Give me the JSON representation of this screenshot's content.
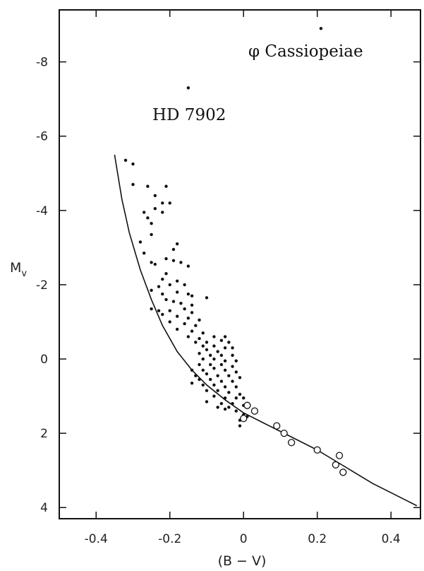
{
  "chart_data": {
    "type": "scatter",
    "title": "",
    "xlabel": "(B − V)",
    "ylabel": "M",
    "ylabel_subscript": "v",
    "xlim": [
      -0.5,
      0.48
    ],
    "ylim": [
      4.3,
      -9.4
    ],
    "y_inverted": true,
    "x_ticks": [
      -0.4,
      -0.2,
      0,
      0.2,
      0.4
    ],
    "x_tick_labels": [
      "-0.4",
      "-0.2",
      "0",
      "0.2",
      "0.4"
    ],
    "y_ticks": [
      -8,
      -6,
      -4,
      -2,
      0,
      2,
      4
    ],
    "y_tick_labels": [
      "-8",
      "-6",
      "-4",
      "-2",
      "0",
      "2",
      "4"
    ],
    "grid": false,
    "annotations": [
      {
        "text": "φ Cassiopeiae",
        "x": 0.21,
        "y": -8.9
      },
      {
        "text": "HD 7902",
        "x": -0.15,
        "y": -7.3
      }
    ],
    "series": [
      {
        "marker": "filled-dot",
        "points": [
          [
            0.21,
            -8.9
          ],
          [
            -0.15,
            -7.3
          ],
          [
            -0.32,
            -5.35
          ],
          [
            -0.3,
            -5.25
          ],
          [
            -0.3,
            -4.7
          ],
          [
            -0.26,
            -4.65
          ],
          [
            -0.21,
            -4.65
          ],
          [
            -0.24,
            -4.4
          ],
          [
            -0.22,
            -4.2
          ],
          [
            -0.2,
            -4.2
          ],
          [
            -0.24,
            -4.05
          ],
          [
            -0.27,
            -3.95
          ],
          [
            -0.22,
            -3.95
          ],
          [
            -0.26,
            -3.8
          ],
          [
            -0.25,
            -3.65
          ],
          [
            -0.28,
            -3.15
          ],
          [
            -0.25,
            -3.35
          ],
          [
            -0.18,
            -3.1
          ],
          [
            -0.19,
            -2.95
          ],
          [
            -0.27,
            -2.85
          ],
          [
            -0.21,
            -2.7
          ],
          [
            -0.25,
            -2.6
          ],
          [
            -0.24,
            -2.55
          ],
          [
            -0.19,
            -2.65
          ],
          [
            -0.17,
            -2.6
          ],
          [
            -0.15,
            -2.5
          ],
          [
            -0.21,
            -2.3
          ],
          [
            -0.22,
            -2.15
          ],
          [
            -0.18,
            -2.1
          ],
          [
            -0.2,
            -2.0
          ],
          [
            -0.16,
            -2.0
          ],
          [
            -0.23,
            -1.95
          ],
          [
            -0.25,
            -1.85
          ],
          [
            -0.22,
            -1.75
          ],
          [
            -0.18,
            -1.8
          ],
          [
            -0.15,
            -1.75
          ],
          [
            -0.14,
            -1.7
          ],
          [
            -0.1,
            -1.65
          ],
          [
            -0.21,
            -1.6
          ],
          [
            -0.19,
            -1.55
          ],
          [
            -0.17,
            -1.5
          ],
          [
            -0.14,
            -1.45
          ],
          [
            -0.25,
            -1.35
          ],
          [
            -0.23,
            -1.3
          ],
          [
            -0.2,
            -1.3
          ],
          [
            -0.16,
            -1.35
          ],
          [
            -0.14,
            -1.25
          ],
          [
            -0.22,
            -1.2
          ],
          [
            -0.18,
            -1.15
          ],
          [
            -0.15,
            -1.1
          ],
          [
            -0.12,
            -1.05
          ],
          [
            -0.2,
            -1.0
          ],
          [
            -0.16,
            -0.95
          ],
          [
            -0.13,
            -0.9
          ],
          [
            -0.18,
            -0.8
          ],
          [
            -0.14,
            -0.75
          ],
          [
            -0.11,
            -0.7
          ],
          [
            -0.15,
            -0.6
          ],
          [
            -0.12,
            -0.55
          ],
          [
            -0.08,
            -0.6
          ],
          [
            -0.05,
            -0.6
          ],
          [
            -0.13,
            -0.45
          ],
          [
            -0.1,
            -0.45
          ],
          [
            -0.06,
            -0.5
          ],
          [
            -0.04,
            -0.45
          ],
          [
            -0.11,
            -0.35
          ],
          [
            -0.08,
            -0.35
          ],
          [
            -0.05,
            -0.3
          ],
          [
            -0.03,
            -0.3
          ],
          [
            -0.1,
            -0.25
          ],
          [
            -0.07,
            -0.2
          ],
          [
            -0.12,
            -0.15
          ],
          [
            -0.09,
            -0.1
          ],
          [
            -0.06,
            -0.1
          ],
          [
            -0.03,
            -0.1
          ],
          [
            -0.11,
            0.0
          ],
          [
            -0.08,
            0.0
          ],
          [
            -0.05,
            0.05
          ],
          [
            -0.02,
            0.05
          ],
          [
            -0.12,
            0.15
          ],
          [
            -0.09,
            0.15
          ],
          [
            -0.06,
            0.15
          ],
          [
            -0.03,
            0.2
          ],
          [
            -0.14,
            0.3
          ],
          [
            -0.11,
            0.3
          ],
          [
            -0.08,
            0.25
          ],
          [
            -0.05,
            0.3
          ],
          [
            -0.02,
            0.35
          ],
          [
            -0.13,
            0.45
          ],
          [
            -0.1,
            0.4
          ],
          [
            -0.07,
            0.45
          ],
          [
            -0.04,
            0.45
          ],
          [
            -0.01,
            0.5
          ],
          [
            -0.12,
            0.55
          ],
          [
            -0.09,
            0.55
          ],
          [
            -0.06,
            0.6
          ],
          [
            -0.03,
            0.6
          ],
          [
            -0.14,
            0.65
          ],
          [
            -0.11,
            0.7
          ],
          [
            -0.08,
            0.7
          ],
          [
            -0.05,
            0.75
          ],
          [
            -0.02,
            0.75
          ],
          [
            -0.1,
            0.85
          ],
          [
            -0.07,
            0.85
          ],
          [
            -0.04,
            0.9
          ],
          [
            -0.01,
            0.95
          ],
          [
            -0.08,
            1.0
          ],
          [
            -0.05,
            1.05
          ],
          [
            -0.02,
            1.05
          ],
          [
            0.0,
            1.05
          ],
          [
            -0.1,
            1.15
          ],
          [
            -0.06,
            1.2
          ],
          [
            -0.03,
            1.2
          ],
          [
            0.0,
            1.25
          ],
          [
            -0.05,
            1.35
          ],
          [
            -0.02,
            1.4
          ],
          [
            0.0,
            1.5
          ],
          [
            -0.01,
            1.65
          ],
          [
            -0.01,
            1.8
          ],
          [
            0.01,
            1.55
          ],
          [
            -0.04,
            1.3
          ],
          [
            -0.07,
            1.3
          ]
        ]
      },
      {
        "marker": "open-circle",
        "points": [
          [
            0.01,
            1.25
          ],
          [
            0.03,
            1.4
          ],
          [
            0.0,
            1.6
          ],
          [
            0.09,
            1.8
          ],
          [
            0.11,
            2.0
          ],
          [
            0.13,
            2.25
          ],
          [
            0.2,
            2.45
          ],
          [
            0.26,
            2.6
          ],
          [
            0.25,
            2.85
          ],
          [
            0.27,
            3.05
          ]
        ]
      }
    ],
    "curve": [
      [
        -0.35,
        -5.5
      ],
      [
        -0.33,
        -4.3
      ],
      [
        -0.31,
        -3.4
      ],
      [
        -0.28,
        -2.4
      ],
      [
        -0.25,
        -1.6
      ],
      [
        -0.22,
        -0.9
      ],
      [
        -0.18,
        -0.2
      ],
      [
        -0.14,
        0.3
      ],
      [
        -0.1,
        0.7
      ],
      [
        -0.05,
        1.1
      ],
      [
        0.0,
        1.45
      ],
      [
        0.05,
        1.7
      ],
      [
        0.1,
        1.95
      ],
      [
        0.15,
        2.2
      ],
      [
        0.2,
        2.45
      ],
      [
        0.25,
        2.75
      ],
      [
        0.3,
        3.05
      ],
      [
        0.35,
        3.35
      ],
      [
        0.4,
        3.6
      ],
      [
        0.44,
        3.8
      ],
      [
        0.47,
        3.95
      ]
    ]
  }
}
